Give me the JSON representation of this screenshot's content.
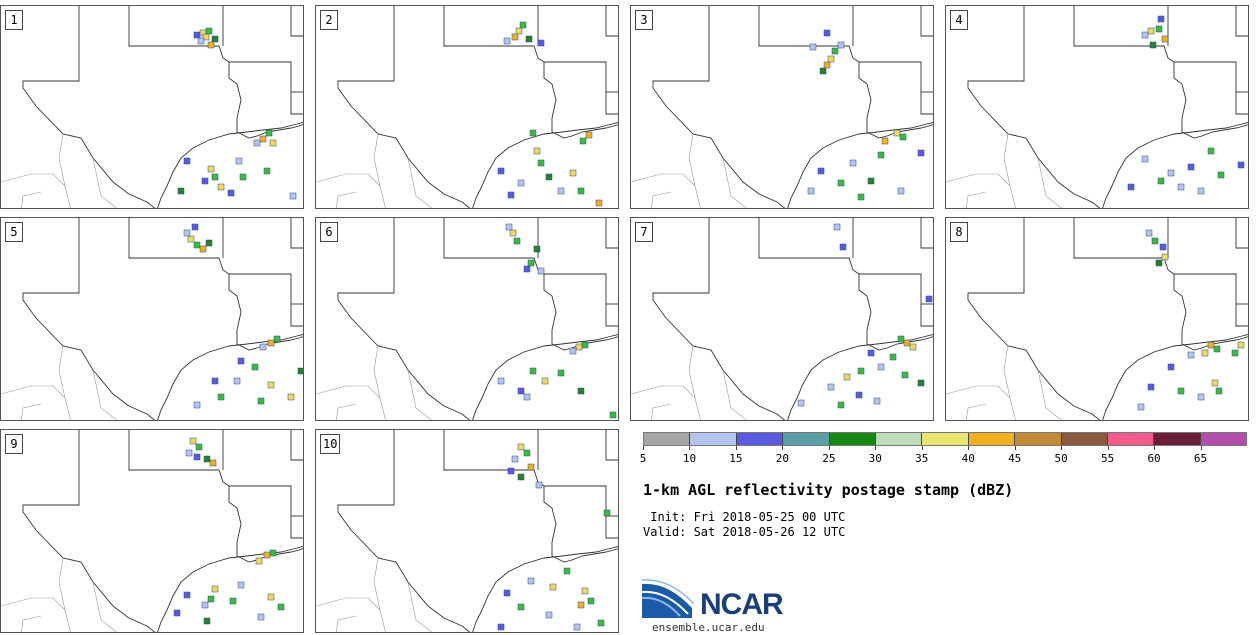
{
  "panels": [
    {
      "label": "1",
      "cells": [
        [
          202,
          32,
          "#f0d860"
        ],
        [
          205,
          36,
          "#f0d860"
        ],
        [
          208,
          30,
          "#3dba3d"
        ],
        [
          200,
          40,
          "#b4c4ec"
        ],
        [
          214,
          38,
          "#2a7f2a"
        ],
        [
          196,
          34,
          "#5a5ae0"
        ],
        [
          210,
          44,
          "#f0b020"
        ],
        [
          262,
          138,
          "#f0b020"
        ],
        [
          268,
          132,
          "#3dba3d"
        ],
        [
          256,
          142,
          "#b4c4ec"
        ],
        [
          272,
          142,
          "#f0d860"
        ],
        [
          210,
          168,
          "#f0d860"
        ],
        [
          214,
          176,
          "#3dba3d"
        ],
        [
          204,
          180,
          "#5a5ae0"
        ],
        [
          186,
          160,
          "#5a5ae0"
        ],
        [
          238,
          160,
          "#b4c4ec"
        ],
        [
          242,
          176,
          "#3dba3d"
        ],
        [
          180,
          190,
          "#2a7f2a"
        ],
        [
          230,
          192,
          "#5a5ae0"
        ],
        [
          292,
          195,
          "#b4c4ec"
        ],
        [
          266,
          170,
          "#3dba3d"
        ],
        [
          220,
          186,
          "#f0d860"
        ]
      ]
    },
    {
      "label": "2",
      "cells": [
        [
          518,
          30,
          "#f0d860"
        ],
        [
          522,
          24,
          "#3dba3d"
        ],
        [
          514,
          36,
          "#f0b020"
        ],
        [
          528,
          38,
          "#2a7f2a"
        ],
        [
          506,
          40,
          "#b4c4ec"
        ],
        [
          540,
          42,
          "#5a5ae0"
        ],
        [
          532,
          132,
          "#3dba3d"
        ],
        [
          588,
          134,
          "#f0b020"
        ],
        [
          582,
          140,
          "#3dba3d"
        ],
        [
          536,
          150,
          "#f0d860"
        ],
        [
          540,
          162,
          "#3dba3d"
        ],
        [
          500,
          170,
          "#5a5ae0"
        ],
        [
          520,
          182,
          "#b4c4ec"
        ],
        [
          548,
          176,
          "#2a7f2a"
        ],
        [
          572,
          172,
          "#f0d860"
        ],
        [
          580,
          190,
          "#3dba3d"
        ],
        [
          598,
          202,
          "#f0b020"
        ],
        [
          510,
          194,
          "#5a5ae0"
        ],
        [
          560,
          190,
          "#b4c4ec"
        ]
      ]
    },
    {
      "label": "3",
      "cells": [
        [
          830,
          58,
          "#f0d860"
        ],
        [
          834,
          50,
          "#3dba3d"
        ],
        [
          826,
          64,
          "#f0b020"
        ],
        [
          840,
          44,
          "#b4c4ec"
        ],
        [
          826,
          32,
          "#5a5ae0"
        ],
        [
          812,
          46,
          "#b4c4ec"
        ],
        [
          822,
          70,
          "#2a7f2a"
        ],
        [
          896,
          132,
          "#f0d860"
        ],
        [
          902,
          136,
          "#3dba3d"
        ],
        [
          884,
          140,
          "#f0b020"
        ],
        [
          880,
          154,
          "#3dba3d"
        ],
        [
          920,
          152,
          "#5a5ae0"
        ],
        [
          852,
          162,
          "#b4c4ec"
        ],
        [
          820,
          170,
          "#5a5ae0"
        ],
        [
          840,
          182,
          "#3dba3d"
        ],
        [
          870,
          180,
          "#2a7f2a"
        ],
        [
          900,
          190,
          "#b4c4ec"
        ],
        [
          810,
          190,
          "#b4c4ec"
        ],
        [
          860,
          196,
          "#3dba3d"
        ]
      ]
    },
    {
      "label": "4",
      "cells": [
        [
          1150,
          30,
          "#f0d860"
        ],
        [
          1158,
          28,
          "#3dba3d"
        ],
        [
          1144,
          34,
          "#b4c4ec"
        ],
        [
          1160,
          18,
          "#5a5ae0"
        ],
        [
          1152,
          44,
          "#2a7f2a"
        ],
        [
          1164,
          38,
          "#f0b020"
        ],
        [
          1170,
          172,
          "#b4c4ec"
        ],
        [
          1210,
          150,
          "#3dba3d"
        ],
        [
          1190,
          166,
          "#5a5ae0"
        ],
        [
          1144,
          158,
          "#b4c4ec"
        ],
        [
          1160,
          180,
          "#3dba3d"
        ],
        [
          1130,
          186,
          "#5a5ae0"
        ],
        [
          1180,
          186,
          "#b4c4ec"
        ],
        [
          1220,
          174,
          "#3dba3d"
        ],
        [
          1240,
          164,
          "#5a5ae0"
        ],
        [
          1200,
          190,
          "#b4c4ec"
        ]
      ]
    },
    {
      "label": "5",
      "cells": [
        [
          190,
          238,
          "#f0d860"
        ],
        [
          196,
          244,
          "#3dba3d"
        ],
        [
          186,
          232,
          "#b4c4ec"
        ],
        [
          202,
          248,
          "#f0b020"
        ],
        [
          208,
          242,
          "#2a7f2a"
        ],
        [
          194,
          226,
          "#5a5ae0"
        ],
        [
          270,
          342,
          "#f0b020"
        ],
        [
          276,
          338,
          "#3dba3d"
        ],
        [
          262,
          346,
          "#b4c4ec"
        ],
        [
          240,
          360,
          "#5a5ae0"
        ],
        [
          254,
          366,
          "#3dba3d"
        ],
        [
          270,
          384,
          "#f0d860"
        ],
        [
          214,
          380,
          "#5a5ae0"
        ],
        [
          236,
          380,
          "#b4c4ec"
        ],
        [
          220,
          396,
          "#3dba3d"
        ],
        [
          290,
          396,
          "#f0d860"
        ],
        [
          260,
          400,
          "#3dba3d"
        ],
        [
          196,
          404,
          "#b4c4ec"
        ],
        [
          300,
          370,
          "#2a7f2a"
        ]
      ]
    },
    {
      "label": "6",
      "cells": [
        [
          512,
          232,
          "#f0d860"
        ],
        [
          516,
          240,
          "#3dba3d"
        ],
        [
          508,
          226,
          "#b4c4ec"
        ],
        [
          536,
          248,
          "#2a7f2a"
        ],
        [
          530,
          262,
          "#3dba3d"
        ],
        [
          540,
          270,
          "#b4c4ec"
        ],
        [
          526,
          268,
          "#5a5ae0"
        ],
        [
          578,
          346,
          "#f0d860"
        ],
        [
          584,
          344,
          "#3dba3d"
        ],
        [
          572,
          350,
          "#b4c4ec"
        ],
        [
          532,
          370,
          "#3dba3d"
        ],
        [
          544,
          380,
          "#f0d860"
        ],
        [
          520,
          390,
          "#5a5ae0"
        ],
        [
          500,
          380,
          "#b4c4ec"
        ],
        [
          560,
          372,
          "#3dba3d"
        ],
        [
          526,
          396,
          "#b4c4ec"
        ],
        [
          612,
          414,
          "#3dba3d"
        ],
        [
          580,
          390,
          "#2a7f2a"
        ]
      ]
    },
    {
      "label": "7",
      "cells": [
        [
          836,
          226,
          "#b4c4ec"
        ],
        [
          842,
          246,
          "#5a5ae0"
        ],
        [
          906,
          342,
          "#f0b020"
        ],
        [
          900,
          338,
          "#3dba3d"
        ],
        [
          912,
          346,
          "#f0d860"
        ],
        [
          892,
          356,
          "#3dba3d"
        ],
        [
          880,
          366,
          "#b4c4ec"
        ],
        [
          870,
          352,
          "#5a5ae0"
        ],
        [
          860,
          370,
          "#3dba3d"
        ],
        [
          846,
          376,
          "#f0d860"
        ],
        [
          830,
          386,
          "#b4c4ec"
        ],
        [
          904,
          374,
          "#3dba3d"
        ],
        [
          920,
          382,
          "#2a7f2a"
        ],
        [
          858,
          394,
          "#5a5ae0"
        ],
        [
          800,
          402,
          "#b4c4ec"
        ],
        [
          840,
          404,
          "#3dba3d"
        ],
        [
          876,
          400,
          "#b4c4ec"
        ],
        [
          928,
          298,
          "#5a5ae0"
        ]
      ]
    },
    {
      "label": "8",
      "cells": [
        [
          1148,
          232,
          "#b4c4ec"
        ],
        [
          1154,
          240,
          "#3dba3d"
        ],
        [
          1164,
          256,
          "#f0d860"
        ],
        [
          1162,
          246,
          "#5a5ae0"
        ],
        [
          1158,
          262,
          "#2a7f2a"
        ],
        [
          1210,
          344,
          "#f0b020"
        ],
        [
          1216,
          348,
          "#3dba3d"
        ],
        [
          1204,
          352,
          "#f0d860"
        ],
        [
          1240,
          344,
          "#f0d860"
        ],
        [
          1234,
          352,
          "#3dba3d"
        ],
        [
          1190,
          354,
          "#b4c4ec"
        ],
        [
          1170,
          366,
          "#5a5ae0"
        ],
        [
          1214,
          382,
          "#f0d860"
        ],
        [
          1218,
          390,
          "#3dba3d"
        ],
        [
          1200,
          396,
          "#b4c4ec"
        ],
        [
          1150,
          386,
          "#5a5ae0"
        ],
        [
          1180,
          390,
          "#3dba3d"
        ],
        [
          1140,
          406,
          "#b4c4ec"
        ]
      ]
    },
    {
      "label": "9",
      "cells": [
        [
          192,
          440,
          "#f0d860"
        ],
        [
          198,
          446,
          "#3dba3d"
        ],
        [
          188,
          452,
          "#b4c4ec"
        ],
        [
          206,
          458,
          "#2a7f2a"
        ],
        [
          212,
          462,
          "#f0b020"
        ],
        [
          196,
          456,
          "#5a5ae0"
        ],
        [
          266,
          554,
          "#f0b020"
        ],
        [
          272,
          552,
          "#3dba3d"
        ],
        [
          258,
          560,
          "#f0d860"
        ],
        [
          214,
          588,
          "#f0d860"
        ],
        [
          210,
          598,
          "#3dba3d"
        ],
        [
          204,
          604,
          "#b4c4ec"
        ],
        [
          186,
          594,
          "#5a5ae0"
        ],
        [
          240,
          584,
          "#b4c4ec"
        ],
        [
          232,
          600,
          "#3dba3d"
        ],
        [
          270,
          596,
          "#f0d860"
        ],
        [
          280,
          606,
          "#3dba3d"
        ],
        [
          206,
          620,
          "#2a7f2a"
        ],
        [
          260,
          616,
          "#b4c4ec"
        ],
        [
          176,
          612,
          "#5a5ae0"
        ]
      ]
    },
    {
      "label": "10",
      "cells": [
        [
          520,
          446,
          "#f0d860"
        ],
        [
          526,
          452,
          "#3dba3d"
        ],
        [
          514,
          458,
          "#b4c4ec"
        ],
        [
          530,
          466,
          "#f0b020"
        ],
        [
          520,
          476,
          "#2a7f2a"
        ],
        [
          510,
          470,
          "#5a5ae0"
        ],
        [
          538,
          484,
          "#b4c4ec"
        ],
        [
          606,
          512,
          "#3dba3d"
        ],
        [
          584,
          590,
          "#f0d860"
        ],
        [
          590,
          600,
          "#3dba3d"
        ],
        [
          580,
          604,
          "#f0b020"
        ],
        [
          566,
          570,
          "#3dba3d"
        ],
        [
          552,
          586,
          "#f0d860"
        ],
        [
          530,
          580,
          "#b4c4ec"
        ],
        [
          506,
          592,
          "#5a5ae0"
        ],
        [
          520,
          606,
          "#3dba3d"
        ],
        [
          548,
          614,
          "#b4c4ec"
        ],
        [
          500,
          626,
          "#5a5ae0"
        ],
        [
          600,
          622,
          "#3dba3d"
        ],
        [
          576,
          626,
          "#b4c4ec"
        ]
      ]
    }
  ],
  "colorbar": {
    "colors": [
      "#a6a6a6",
      "#b4c4ec",
      "#5a5ae0",
      "#5a9ea6",
      "#168816",
      "#bcdcbc",
      "#ece470",
      "#f0b020",
      "#c08a38",
      "#8a5a3e",
      "#f45a8a",
      "#6a1e3a",
      "#b04ea8"
    ],
    "ticks": [
      "5",
      "10",
      "15",
      "20",
      "25",
      "30",
      "35",
      "40",
      "45",
      "50",
      "55",
      "60",
      "65"
    ]
  },
  "title": "1-km AGL reflectivity postage stamp (dBZ)",
  "init_line": " Init: Fri 2018-05-25 00 UTC",
  "valid_line": "Valid: Sat 2018-05-26 12 UTC",
  "logo": {
    "text": "NCAR",
    "url": "ensemble.ucar.edu"
  }
}
